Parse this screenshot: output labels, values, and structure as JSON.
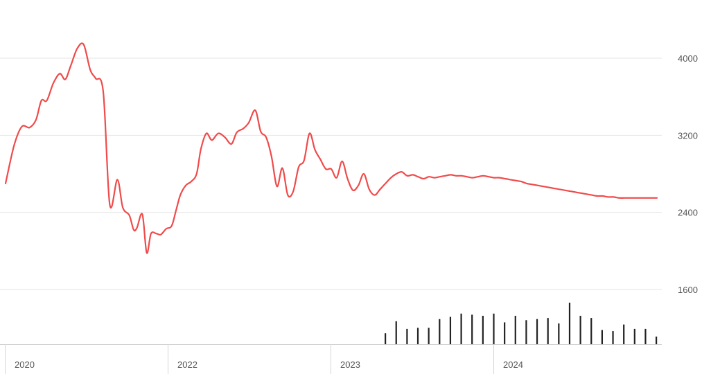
{
  "chart_data": {
    "type": "line",
    "title": "",
    "xlabel": "",
    "ylabel": "",
    "ylim": [
      1480,
      4480
    ],
    "y_ticks": [
      "1600",
      "2400",
      "3200",
      "4000"
    ],
    "x_tick_labels": [
      "2020",
      "2022",
      "2023",
      "2024"
    ],
    "grid": true,
    "line_color": "#f04a4a",
    "volume_color": "#222222",
    "series": [
      {
        "x": [
          0,
          0.8,
          1.5,
          2.2,
          2.8,
          3.3,
          3.8,
          4.4,
          5,
          5.5,
          6,
          6.6,
          7.2,
          7.8,
          8.3,
          9,
          9.6,
          10.3,
          10.8,
          11.4,
          11.8,
          12.1,
          12.6,
          13,
          13.4,
          13.9,
          14.3,
          14.8,
          15.3,
          15.7,
          16.1,
          16.6,
          17.1,
          17.6,
          18,
          18.5,
          19,
          19.6,
          20.2,
          20.8,
          21.3,
          21.9,
          22.4,
          23,
          23.5,
          24,
          24.5,
          25,
          25.5,
          26,
          26.5,
          27,
          27.5,
          28,
          28.5,
          29,
          29.5,
          30,
          30.5,
          31,
          31.5,
          32,
          32.5,
          33,
          33.5,
          34,
          34.5,
          35,
          35.5,
          36,
          36.5,
          37,
          37.5,
          38,
          38.5,
          39,
          39.5,
          40,
          40.5,
          41,
          41.5,
          42,
          42.5,
          43,
          43.5,
          44,
          44.5,
          45,
          45.5,
          46,
          46.5,
          47,
          47.5,
          48,
          48.5,
          49,
          49.5,
          50,
          50.5,
          51,
          51.5,
          52,
          52.5,
          53,
          53.5,
          54,
          54.5,
          55,
          55.5,
          56,
          56.5,
          57,
          57.5,
          58,
          58.5,
          59,
          59.5,
          60
        ],
        "values": [
          2700,
          3100,
          3290,
          3280,
          3360,
          3560,
          3560,
          3740,
          3840,
          3780,
          3920,
          4100,
          4140,
          3880,
          3790,
          3650,
          2480,
          2740,
          2450,
          2370,
          2220,
          2240,
          2380,
          1980,
          2180,
          2180,
          2170,
          2230,
          2260,
          2420,
          2580,
          2680,
          2720,
          2800,
          3060,
          3220,
          3150,
          3220,
          3180,
          3110,
          3230,
          3270,
          3330,
          3460,
          3240,
          3180,
          2980,
          2670,
          2860,
          2580,
          2620,
          2870,
          2940,
          3220,
          3050,
          2950,
          2850,
          2850,
          2760,
          2930,
          2750,
          2630,
          2680,
          2800,
          2640,
          2580,
          2640,
          2700,
          2760,
          2800,
          2820,
          2780,
          2790,
          2770,
          2750,
          2770,
          2760,
          2770,
          2780,
          2790,
          2780,
          2780,
          2770,
          2760,
          2770,
          2780,
          2770,
          2760,
          2760,
          2750,
          2740,
          2730,
          2720,
          2700,
          2690,
          2680,
          2670,
          2660,
          2650,
          2640,
          2630,
          2620,
          2610,
          2600,
          2590,
          2580,
          2570,
          2570,
          2560,
          2560,
          2550,
          2550,
          2550,
          2550,
          2550,
          2550,
          2550,
          2550
        ],
        "note": ""
      }
    ],
    "volume": [
      1,
      2.1,
      1.4,
      1.5,
      1.5,
      2.3,
      2.5,
      2.8,
      2.7,
      2.6,
      2.8,
      2,
      2.6,
      2.2,
      2.3,
      2.4,
      1.9,
      3.8,
      2.6,
      2.4,
      1.3,
      1.2,
      1.8,
      1.4,
      1.4,
      0.7
    ]
  }
}
